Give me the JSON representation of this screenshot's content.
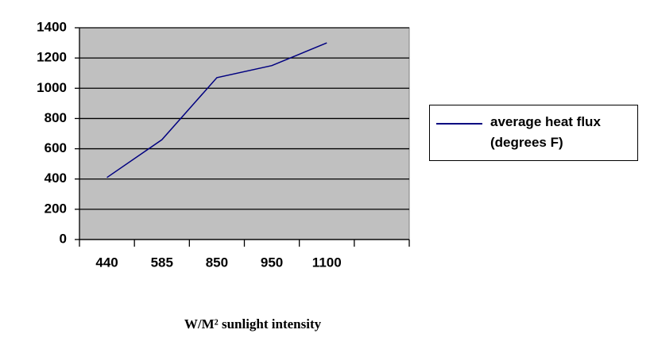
{
  "chart_data": {
    "type": "line",
    "x_label": "W/M² sunlight intensity",
    "categories": [
      "440",
      "585",
      "850",
      "950",
      "1100",
      null
    ],
    "series": [
      {
        "name": "average heat flux (degrees F)",
        "color": "#000080",
        "values": [
          410,
          660,
          1070,
          1150,
          1300,
          null
        ]
      }
    ],
    "ylim": [
      0,
      1400
    ],
    "yticks": [
      0,
      200,
      400,
      600,
      800,
      1000,
      1200,
      1400
    ],
    "grid": true,
    "legend": "right"
  }
}
